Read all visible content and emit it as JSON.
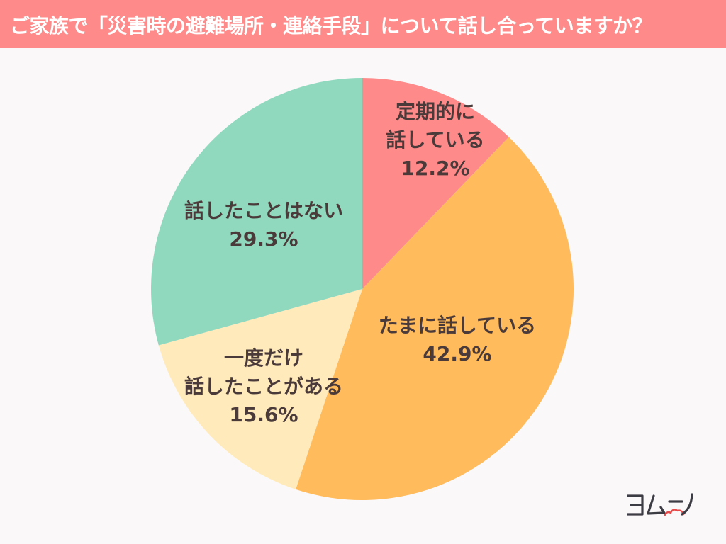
{
  "header": {
    "title": "ご家族で「災害時の避難場所・連絡手段」について話し合っていますか？",
    "background": "#ff8a8a"
  },
  "chart_data": {
    "type": "pie",
    "title": "ご家族で「災害時の避難場所・連絡手段」について話し合っていますか？",
    "categories": [
      "定期的に話している",
      "たまに話している",
      "一度だけ話したことがある",
      "話したことはない"
    ],
    "values": [
      12.2,
      42.9,
      15.6,
      29.3
    ],
    "unit": "%",
    "colors": [
      "#ff8a8a",
      "#ffbb5c",
      "#ffeabb",
      "#90d9bf"
    ],
    "start_angle": "12 o'clock, clockwise",
    "legend": "none (labels inside slices)"
  },
  "labels": [
    {
      "line1": "定期的に",
      "line2": "話している",
      "pct": "12.2%"
    },
    {
      "line1": "たまに話している",
      "pct": "42.9%"
    },
    {
      "line1": "一度だけ",
      "line2": "話したことがある",
      "pct": "15.6%"
    },
    {
      "line1": "話したことはない",
      "pct": "29.3%"
    }
  ],
  "logo": {
    "text": "ヨムーノ"
  }
}
